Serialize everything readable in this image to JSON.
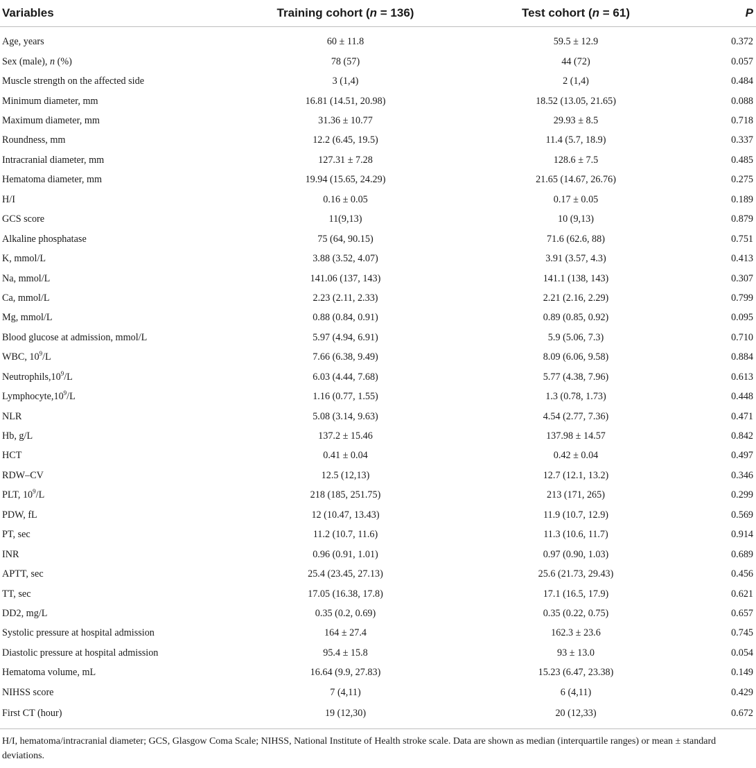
{
  "headers": {
    "variables": "Variables",
    "training": "Training cohort (n = 136)",
    "test": "Test cohort (n = 61)",
    "p": "P"
  },
  "rows": [
    {
      "variable": "Age, years",
      "training": "60 ± 11.8",
      "test": "59.5 ± 12.9",
      "p": "0.372"
    },
    {
      "variable": "Sex (male), n (%)",
      "training": "78 (57)",
      "test": "44 (72)",
      "p": "0.057"
    },
    {
      "variable": "Muscle strength on the affected side",
      "training": "3 (1,4)",
      "test": "2 (1,4)",
      "p": "0.484"
    },
    {
      "variable": "Minimum diameter, mm",
      "training": "16.81 (14.51, 20.98)",
      "test": "18.52 (13.05, 21.65)",
      "p": "0.088"
    },
    {
      "variable": "Maximum diameter, mm",
      "training": "31.36 ± 10.77",
      "test": "29.93 ± 8.5",
      "p": "0.718"
    },
    {
      "variable": "Roundness, mm",
      "training": "12.2 (6.45, 19.5)",
      "test": "11.4 (5.7, 18.9)",
      "p": "0.337"
    },
    {
      "variable": "Intracranial diameter, mm",
      "training": "127.31 ± 7.28",
      "test": "128.6 ± 7.5",
      "p": "0.485"
    },
    {
      "variable": "Hematoma diameter, mm",
      "training": "19.94 (15.65, 24.29)",
      "test": "21.65 (14.67, 26.76)",
      "p": "0.275"
    },
    {
      "variable": "H/I",
      "training": "0.16 ± 0.05",
      "test": "0.17 ± 0.05",
      "p": "0.189"
    },
    {
      "variable": "GCS score",
      "training": "11(9,13)",
      "test": "10 (9,13)",
      "p": "0.879"
    },
    {
      "variable": "Alkaline phosphatase",
      "training": "75 (64, 90.15)",
      "test": "71.6 (62.6, 88)",
      "p": "0.751"
    },
    {
      "variable": "K, mmol/L",
      "training": "3.88 (3.52, 4.07)",
      "test": "3.91 (3.57, 4.3)",
      "p": "0.413"
    },
    {
      "variable": "Na, mmol/L",
      "training": "141.06 (137, 143)",
      "test": "141.1 (138, 143)",
      "p": "0.307"
    },
    {
      "variable": "Ca, mmol/L",
      "training": "2.23 (2.11, 2.33)",
      "test": "2.21 (2.16, 2.29)",
      "p": "0.799"
    },
    {
      "variable": "Mg, mmol/L",
      "training": "0.88 (0.84, 0.91)",
      "test": "0.89 (0.85, 0.92)",
      "p": "0.095"
    },
    {
      "variable": "Blood glucose at admission, mmol/L",
      "training": "5.97 (4.94, 6.91)",
      "test": "5.9 (5.06, 7.3)",
      "p": "0.710"
    },
    {
      "variable": "WBC, 10^9/L",
      "training": "7.66 (6.38, 9.49)",
      "test": "8.09 (6.06, 9.58)",
      "p": "0.884"
    },
    {
      "variable": "Neutrophils,10^9/L",
      "training": "6.03 (4.44, 7.68)",
      "test": "5.77 (4.38, 7.96)",
      "p": "0.613"
    },
    {
      "variable": "Lymphocyte,10^9/L",
      "training": "1.16 (0.77, 1.55)",
      "test": "1.3 (0.78, 1.73)",
      "p": "0.448"
    },
    {
      "variable": "NLR",
      "training": "5.08 (3.14, 9.63)",
      "test": "4.54 (2.77, 7.36)",
      "p": "0.471"
    },
    {
      "variable": "Hb, g/L",
      "training": "137.2 ± 15.46",
      "test": "137.98 ± 14.57",
      "p": "0.842"
    },
    {
      "variable": "HCT",
      "training": "0.41 ± 0.04",
      "test": "0.42 ± 0.04",
      "p": "0.497"
    },
    {
      "variable": "RDW–CV",
      "training": "12.5 (12,13)",
      "test": "12.7 (12.1, 13.2)",
      "p": "0.346"
    },
    {
      "variable": "PLT, 10^9/L",
      "training": "218 (185, 251.75)",
      "test": "213 (171, 265)",
      "p": "0.299"
    },
    {
      "variable": "PDW, fL",
      "training": "12 (10.47, 13.43)",
      "test": "11.9 (10.7, 12.9)",
      "p": "0.569"
    },
    {
      "variable": "PT, sec",
      "training": "11.2 (10.7, 11.6)",
      "test": "11.3 (10.6, 11.7)",
      "p": "0.914"
    },
    {
      "variable": "INR",
      "training": "0.96 (0.91, 1.01)",
      "test": "0.97 (0.90, 1.03)",
      "p": "0.689"
    },
    {
      "variable": "APTT, sec",
      "training": "25.4 (23.45, 27.13)",
      "test": "25.6 (21.73, 29.43)",
      "p": "0.456"
    },
    {
      "variable": "TT, sec",
      "training": "17.05 (16.38, 17.8)",
      "test": "17.1 (16.5, 17.9)",
      "p": "0.621"
    },
    {
      "variable": "DD2, mg/L",
      "training": "0.35 (0.2, 0.69)",
      "test": "0.35 (0.22, 0.75)",
      "p": "0.657"
    },
    {
      "variable": "Systolic pressure at hospital admission",
      "training": "164 ± 27.4",
      "test": "162.3 ± 23.6",
      "p": "0.745"
    },
    {
      "variable": "Diastolic pressure at hospital admission",
      "training": "95.4 ± 15.8",
      "test": "93 ± 13.0",
      "p": "0.054"
    },
    {
      "variable": "Hematoma volume, mL",
      "training": "16.64 (9.9, 27.83)",
      "test": "15.23 (6.47, 23.38)",
      "p": "0.149"
    },
    {
      "variable": "NIHSS score",
      "training": "7 (4,11)",
      "test": "6 (4,11)",
      "p": "0.429"
    },
    {
      "variable": "First CT (hour)",
      "training": "19 (12,30)",
      "test": "20 (12,33)",
      "p": "0.672"
    }
  ],
  "footnote": "H/I, hematoma/intracranial diameter; GCS, Glasgow Coma Scale; NIHSS, National Institute of Health stroke scale. Data are shown as median (interquartile ranges) or mean ± standard deviations."
}
